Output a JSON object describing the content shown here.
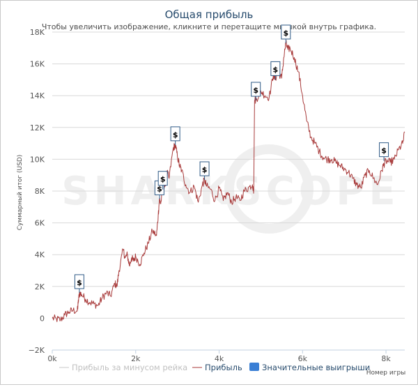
{
  "chart_data": {
    "type": "line",
    "title": "Общая прибыль",
    "subtitle": "Чтобы увеличить изображение, кликните и перетащите мышкой внутрь графика.",
    "ylabel": "Суммарный итог (USD)",
    "xlabel": "Номер игры",
    "xlim": [
      0,
      8450
    ],
    "ylim": [
      -2000,
      18000
    ],
    "x_ticks": [
      {
        "value": 0,
        "label": "0k"
      },
      {
        "value": 2000,
        "label": "2k"
      },
      {
        "value": 4000,
        "label": "4k"
      },
      {
        "value": 6000,
        "label": "6k"
      },
      {
        "value": 8000,
        "label": "8k"
      }
    ],
    "y_ticks": [
      {
        "value": -2000,
        "label": "−2K"
      },
      {
        "value": 0,
        "label": "0"
      },
      {
        "value": 2000,
        "label": "2K"
      },
      {
        "value": 4000,
        "label": "4K"
      },
      {
        "value": 6000,
        "label": "6K"
      },
      {
        "value": 8000,
        "label": "8K"
      },
      {
        "value": 10000,
        "label": "10K"
      },
      {
        "value": 12000,
        "label": "12K"
      },
      {
        "value": 14000,
        "label": "14K"
      },
      {
        "value": 16000,
        "label": "16K"
      },
      {
        "value": 18000,
        "label": "18K"
      }
    ],
    "series": [
      {
        "name": "Прибыль",
        "color": "#a83a3a",
        "x": [
          0,
          100,
          200,
          300,
          400,
          500,
          600,
          620,
          650,
          700,
          800,
          900,
          1000,
          1100,
          1200,
          1300,
          1400,
          1500,
          1550,
          1600,
          1700,
          1750,
          1800,
          1850,
          1900,
          1950,
          2000,
          2100,
          2200,
          2300,
          2400,
          2500,
          2540,
          2570,
          2600,
          2650,
          2700,
          2750,
          2800,
          2900,
          2950,
          3000,
          3050,
          3100,
          3200,
          3300,
          3400,
          3500,
          3600,
          3650,
          3700,
          3800,
          3900,
          4000,
          4100,
          4200,
          4300,
          4400,
          4500,
          4600,
          4700,
          4800,
          4830,
          4850,
          4900,
          5000,
          5100,
          5200,
          5300,
          5350,
          5400,
          5500,
          5550,
          5600,
          5650,
          5700,
          5800,
          5900,
          6000,
          6100,
          6200,
          6300,
          6400,
          6500,
          6600,
          6700,
          6800,
          6900,
          7000,
          7100,
          7200,
          7300,
          7400,
          7500,
          7600,
          7700,
          7800,
          7900,
          7950,
          8000,
          8100,
          8200,
          8300,
          8400,
          8450
        ],
        "values": [
          0,
          -50,
          -100,
          200,
          400,
          500,
          450,
          900,
          1600,
          1500,
          1200,
          1000,
          900,
          800,
          1300,
          1600,
          1400,
          2200,
          2000,
          3000,
          4300,
          3800,
          4000,
          3300,
          3800,
          3600,
          3900,
          3400,
          4100,
          4700,
          5500,
          5200,
          6500,
          7500,
          7200,
          8100,
          8300,
          9200,
          8800,
          10700,
          10900,
          10200,
          9600,
          9300,
          8400,
          7900,
          8300,
          7300,
          8400,
          8700,
          8300,
          8100,
          7400,
          8200,
          7400,
          7900,
          7300,
          7600,
          7400,
          8000,
          8200,
          8400,
          8000,
          13700,
          13800,
          14300,
          14000,
          13900,
          15300,
          15000,
          15600,
          15100,
          16400,
          17300,
          16900,
          17000,
          16400,
          15500,
          14000,
          12400,
          11400,
          11000,
          10500,
          10100,
          10000,
          10000,
          9800,
          9600,
          9400,
          9200,
          8800,
          8400,
          8200,
          9000,
          9300,
          8800,
          8400,
          9300,
          9700,
          9900,
          9800,
          10000,
          10600,
          11000,
          11700
        ]
      },
      {
        "name": "Прибыль за минусом рейка",
        "color": "#c8c8c8",
        "x": [],
        "values": []
      }
    ],
    "big_wins": {
      "name": "Значительные выигрыши",
      "color": "#3a7fd5",
      "marker_label": "$",
      "points": [
        {
          "x": 650,
          "y": 1600
        },
        {
          "x": 2570,
          "y": 7500
        },
        {
          "x": 2650,
          "y": 8100
        },
        {
          "x": 2950,
          "y": 10900
        },
        {
          "x": 3650,
          "y": 8700
        },
        {
          "x": 4880,
          "y": 13700
        },
        {
          "x": 5350,
          "y": 15000
        },
        {
          "x": 5600,
          "y": 17300
        },
        {
          "x": 7950,
          "y": 9900
        }
      ]
    },
    "legend": [
      {
        "label": "Прибыль за минусом рейка",
        "color": "#c8c8c8",
        "kind": "line"
      },
      {
        "label": "Прибыль",
        "color": "#a83a3a",
        "kind": "line"
      },
      {
        "label": "Значительные выигрыши",
        "color": "#3a7fd5",
        "kind": "box"
      }
    ],
    "watermark": "SHARKSCOPE",
    "grid": "horizontal"
  }
}
